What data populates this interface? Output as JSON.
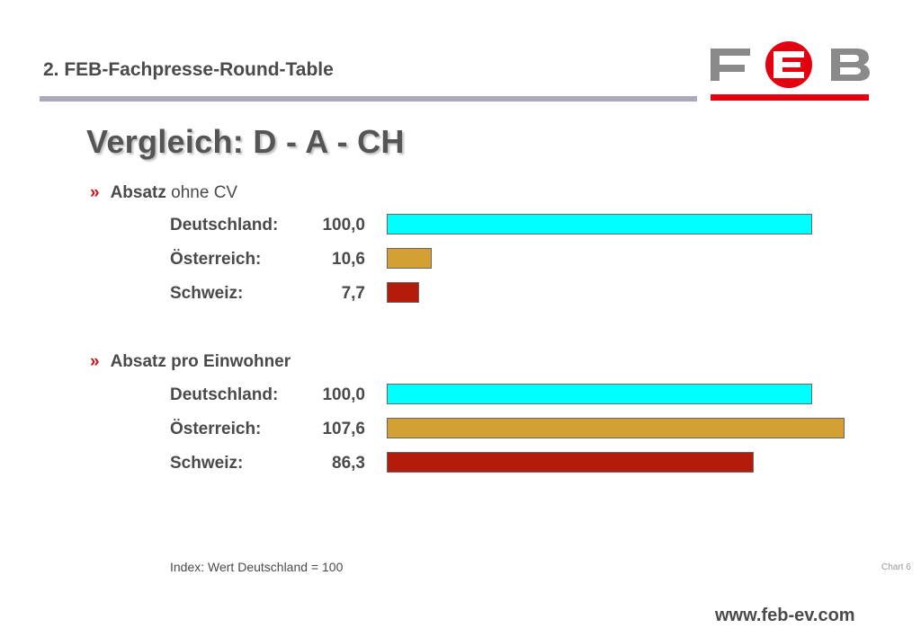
{
  "header": {
    "title": "2. FEB-Fachpresse-Round-Table",
    "logo_text": "FEB",
    "logo_colors": {
      "grey": "#8a8a8a",
      "red": "#e3000f"
    }
  },
  "main": {
    "title": "Vergleich:  D - A - CH"
  },
  "chart_data": {
    "type": "bar",
    "orientation": "horizontal",
    "note": "Index: Wert Deutschland = 100",
    "groups": [
      {
        "bullet": "»",
        "title_bold": "Absatz",
        "title_rest": " ohne CV",
        "rows": [
          {
            "label": "Deutschland:",
            "value": 100.0,
            "display": "100,0",
            "color": "#00ffff"
          },
          {
            "label": "Österreich:",
            "value": 10.6,
            "display": "10,6",
            "color": "#d4a034"
          },
          {
            "label": "Schweiz:",
            "value": 7.7,
            "display": "7,7",
            "color": "#b41a0a"
          }
        ]
      },
      {
        "bullet": "»",
        "title_bold": "Absatz pro Einwohner",
        "title_rest": "",
        "rows": [
          {
            "label": "Deutschland:",
            "value": 100.0,
            "display": "100,0",
            "color": "#00ffff"
          },
          {
            "label": "Österreich:",
            "value": 107.6,
            "display": "107,6",
            "color": "#d4a034"
          },
          {
            "label": "Schweiz:",
            "value": 86.3,
            "display": "86,3",
            "color": "#b41a0a"
          }
        ]
      }
    ]
  },
  "footer": {
    "chart_number": "Chart 6",
    "website": "www.feb-ev.com"
  }
}
